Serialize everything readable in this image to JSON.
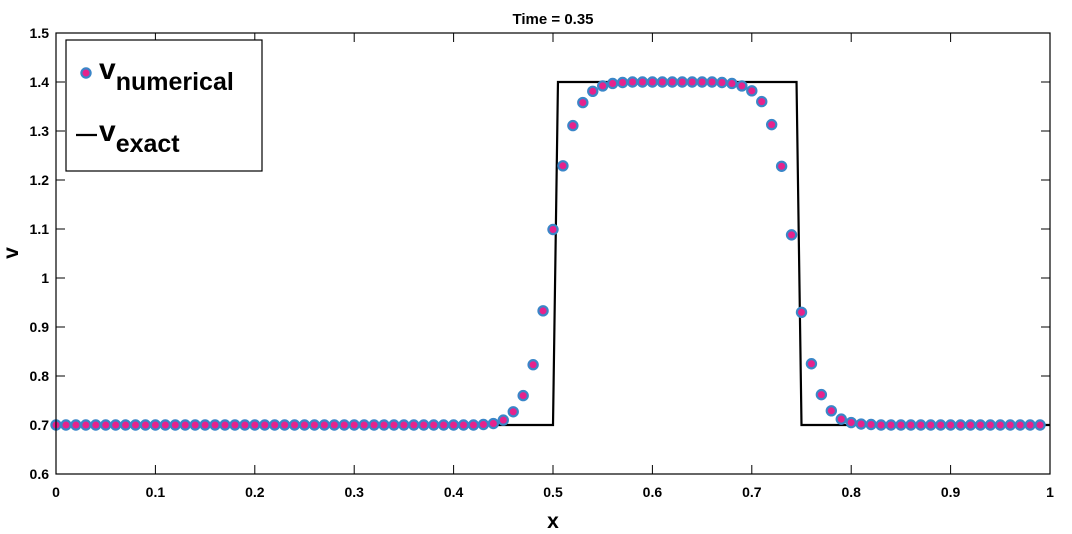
{
  "chart_data": {
    "type": "line",
    "title": "Time = 0.35",
    "xlabel": "x",
    "ylabel": "v",
    "xlim": [
      0,
      1
    ],
    "ylim": [
      0.6,
      1.5
    ],
    "xticks": [
      0,
      0.1,
      0.2,
      0.3,
      0.4,
      0.5,
      0.6,
      0.7,
      0.8,
      0.9,
      1
    ],
    "xtick_labels": [
      "0",
      "0.1",
      "0.2",
      "0.3",
      "0.4",
      "0.5",
      "0.6",
      "0.7",
      "0.8",
      "0.9",
      "1"
    ],
    "yticks": [
      0.6,
      0.7,
      0.8,
      0.9,
      1.0,
      1.1,
      1.2,
      1.3,
      1.4,
      1.5
    ],
    "ytick_labels": [
      "0.6",
      "0.7",
      "0.8",
      "0.9",
      "1",
      "1.1",
      "1.2",
      "1.3",
      "1.4",
      "1.5"
    ],
    "grid": false,
    "legend_position": "top-left",
    "series": [
      {
        "name_main": "v",
        "name_sub": "numerical",
        "marker": "circle",
        "marker_fill": "#e6228c",
        "marker_edge": "#3a86c8",
        "x": [
          0,
          0.01,
          0.02,
          0.03,
          0.04,
          0.05,
          0.06,
          0.07,
          0.08,
          0.09,
          0.1,
          0.11,
          0.12,
          0.13,
          0.14,
          0.15,
          0.16,
          0.17,
          0.18,
          0.19,
          0.2,
          0.21,
          0.22,
          0.23,
          0.24,
          0.25,
          0.26,
          0.27,
          0.28,
          0.29,
          0.3,
          0.31,
          0.32,
          0.33,
          0.34,
          0.35,
          0.36,
          0.37,
          0.38,
          0.39,
          0.4,
          0.41,
          0.42,
          0.43,
          0.44,
          0.45,
          0.46,
          0.47,
          0.48,
          0.49,
          0.5,
          0.51,
          0.52,
          0.53,
          0.54,
          0.55,
          0.56,
          0.57,
          0.58,
          0.59,
          0.6,
          0.61,
          0.62,
          0.63,
          0.64,
          0.65,
          0.66,
          0.67,
          0.68,
          0.69,
          0.7,
          0.71,
          0.72,
          0.73,
          0.74,
          0.75,
          0.76,
          0.77,
          0.78,
          0.79,
          0.8,
          0.81,
          0.82,
          0.83,
          0.84,
          0.85,
          0.86,
          0.87,
          0.88,
          0.89,
          0.9,
          0.91,
          0.92,
          0.93,
          0.94,
          0.95,
          0.96,
          0.97,
          0.98,
          0.99
        ],
        "y": [
          0.7,
          0.7,
          0.7,
          0.7,
          0.7,
          0.7,
          0.7,
          0.7,
          0.7,
          0.7,
          0.7,
          0.7,
          0.7,
          0.7,
          0.7,
          0.7,
          0.7,
          0.7,
          0.7,
          0.7,
          0.7,
          0.7,
          0.7,
          0.7,
          0.7,
          0.7,
          0.7,
          0.7,
          0.7,
          0.7,
          0.7,
          0.7,
          0.7,
          0.7,
          0.7,
          0.7,
          0.7,
          0.7,
          0.7,
          0.7,
          0.7,
          0.7,
          0.7,
          0.701,
          0.703,
          0.71,
          0.727,
          0.76,
          0.823,
          0.933,
          1.099,
          1.229,
          1.311,
          1.358,
          1.381,
          1.392,
          1.397,
          1.399,
          1.4,
          1.4,
          1.4,
          1.4,
          1.4,
          1.4,
          1.4,
          1.4,
          1.4,
          1.399,
          1.397,
          1.392,
          1.382,
          1.36,
          1.313,
          1.228,
          1.088,
          0.93,
          0.825,
          0.762,
          0.729,
          0.712,
          0.705,
          0.702,
          0.701,
          0.7,
          0.7,
          0.7,
          0.7,
          0.7,
          0.7,
          0.7,
          0.7,
          0.7,
          0.7,
          0.7,
          0.7,
          0.7,
          0.7,
          0.7,
          0.7,
          0.7
        ]
      },
      {
        "name_main": "v",
        "name_sub": "exact",
        "line_color": "#000000",
        "x": [
          0,
          0.5,
          0.505,
          0.745,
          0.75,
          1
        ],
        "y": [
          0.7,
          0.7,
          1.4,
          1.4,
          0.7,
          0.7
        ]
      }
    ]
  }
}
